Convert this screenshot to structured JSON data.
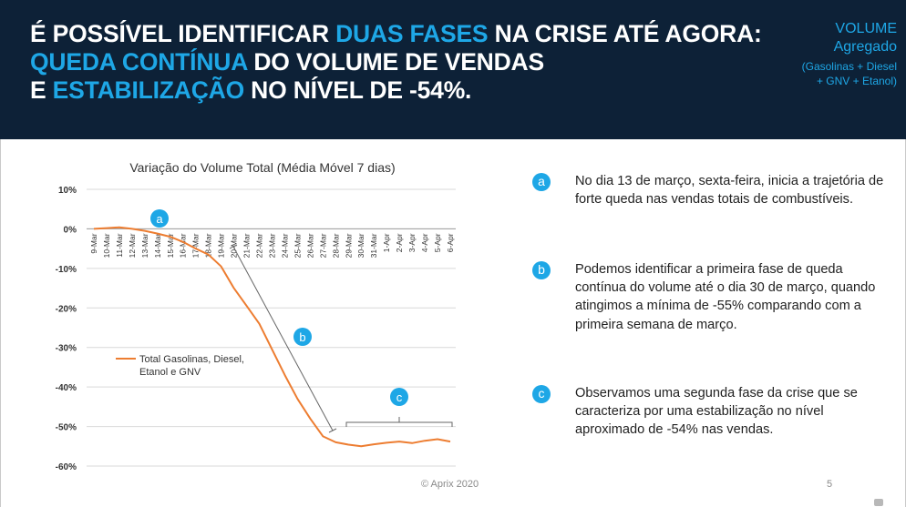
{
  "header": {
    "line1_a": "É POSSÍVEL IDENTIFICAR ",
    "line1_b": "DUAS FASES",
    "line1_c": " NA CRISE ATÉ AGORA:",
    "line2_a": "QUEDA CONTÍNUA",
    "line2_b": " DO VOLUME DE VENDAS",
    "line3_a": "E ",
    "line3_b": "ESTABILIZAÇÃO",
    "line3_c": " NO NÍVEL DE -54%.",
    "tag_title": "VOLUME",
    "tag_sub": "Agregado",
    "tag_detail_1": "(Gasolinas + Diesel",
    "tag_detail_2": "+ GNV + Etanol)"
  },
  "items": [
    {
      "badge": "a",
      "text": "No dia 13 de março, sexta-feira, inicia a trajetória de forte queda nas vendas totais de combustíveis."
    },
    {
      "badge": "b",
      "text": "Podemos identificar a primeira fase de queda contínua do volume até o dia 30 de março, quando atingimos a mínima de -55% comparando com a primeira semana de março."
    },
    {
      "badge": "c",
      "text": "Observamos uma segunda fase da crise que se caracteriza por uma estabilização no nível aproximado de -54% nas vendas."
    }
  ],
  "footer": {
    "copyright": "© Aprix 2020",
    "page": "5"
  },
  "colors": {
    "header_bg": "#0d2137",
    "accent": "#1ea7e6",
    "series": "#ed7d31"
  },
  "chart_data": {
    "type": "line",
    "title": "Variação do Volume Total (Média Móvel 7 dias)",
    "xlabel": "",
    "ylabel": "",
    "ylim": [
      -60,
      10
    ],
    "y_ticks": [
      "10%",
      "0%",
      "-10%",
      "-20%",
      "-30%",
      "-40%",
      "-50%",
      "-60%"
    ],
    "y_tick_values": [
      10,
      0,
      -10,
      -20,
      -30,
      -40,
      -50,
      -60
    ],
    "categories": [
      "9-Mar",
      "10-Mar",
      "11-Mar",
      "12-Mar",
      "13-Mar",
      "14-Mar",
      "15-Mar",
      "16-Mar",
      "17-Mar",
      "18-Mar",
      "19-Mar",
      "20-Mar",
      "21-Mar",
      "22-Mar",
      "23-Mar",
      "24-Mar",
      "25-Mar",
      "26-Mar",
      "27-Mar",
      "28-Mar",
      "29-Mar",
      "30-Mar",
      "31-Mar",
      "1-Apr",
      "2-Apr",
      "3-Apr",
      "4-Apr",
      "5-Apr",
      "6-Apr"
    ],
    "series": [
      {
        "name": "Total Gasolinas, Diesel, Etanol e GNV",
        "values": [
          0,
          0.2,
          0.4,
          0,
          -0.5,
          -1.2,
          -2,
          -3.3,
          -5,
          -6.5,
          -9.5,
          -15,
          -19.5,
          -24,
          -30.5,
          -37,
          -43,
          -48,
          -52.5,
          -54,
          -54.6,
          -55,
          -54.5,
          -54.1,
          -53.8,
          -54.2,
          -53.6,
          -53.2,
          -53.8
        ]
      }
    ],
    "legend_position": "left-middle",
    "grid": true,
    "annotations": [
      "a",
      "b",
      "c"
    ]
  }
}
